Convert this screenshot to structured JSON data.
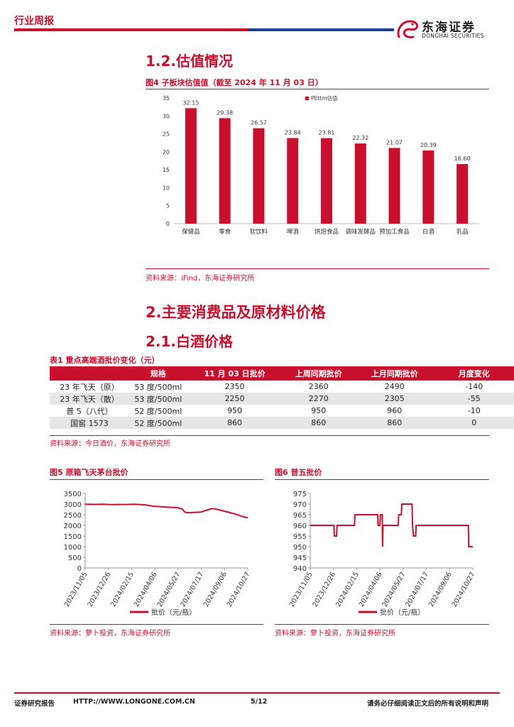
{
  "header": {
    "section_label": "行业周报",
    "logo_cn": "东海证券",
    "logo_en": "DONGHAI SECURITIES"
  },
  "sec_1_2": {
    "title": "1.2.估值情况",
    "figure_title": "图4  子板块估值值（截至 2024 年 11 月 03 日）",
    "source": "资料来源：iFind，东海证券研究所"
  },
  "sec_2": {
    "title": "2.主要消费品及原材料价格",
    "sub_title": "2.1.白酒价格"
  },
  "table1": {
    "title": "表1  重点高端酒批价变化（元）",
    "headers": [
      "",
      "规格",
      "11 月 03 日批价",
      "上周同期批价",
      "上月同期批价",
      "月度变化"
    ],
    "rows": [
      [
        "23 年飞天（原）",
        "53 度/500ml",
        "2350",
        "2360",
        "2490",
        "-140"
      ],
      [
        "23 年飞天（散）",
        "53 度/500ml",
        "2250",
        "2270",
        "2305",
        "-55"
      ],
      [
        "普 5（八代）",
        "52 度/500ml",
        "950",
        "950",
        "960",
        "-10"
      ],
      [
        "国窖 1573",
        "52 度/500ml",
        "860",
        "860",
        "860",
        "0"
      ]
    ],
    "source": "资料来源：今日酒价，东海证券研究所"
  },
  "figure5": {
    "title": "图5  原箱飞天茅台批价",
    "source": "资料来源：萝卜投资，东海证券研究所"
  },
  "figure6": {
    "title": "图6  普五批价",
    "source": "资料来源：萝卜投资，东海证券研究所"
  },
  "footer": {
    "left": "证券研究报告",
    "url": "HTTP://WWW.LONGONE.COM.CN",
    "page": "5/12",
    "right": "请务必仔细阅读正文后的所有说明和声明"
  },
  "colors": {
    "accent": "#c8102e",
    "navy": "#1f3f8f"
  },
  "chart_data": [
    {
      "type": "bar",
      "categories": [
        "保健品",
        "零食",
        "软饮料",
        "啤酒",
        "烘焙食品",
        "调味发酵品",
        "预加工食品",
        "白酒",
        "乳品"
      ],
      "series": [
        {
          "name": "PEttm估值",
          "values": [
            32.15,
            29.38,
            26.57,
            23.84,
            23.81,
            22.32,
            21.07,
            20.39,
            16.6
          ]
        }
      ],
      "value_labels": [
        "32.15",
        "29.38",
        "26.57",
        "23.84",
        "23.81",
        "22.32",
        "21.07",
        "20.39",
        "16.60"
      ],
      "ylim": [
        0,
        35
      ],
      "yticks": [
        "0",
        "5",
        "10",
        "15",
        "20",
        "25",
        "30",
        "35"
      ],
      "legend": "top-right",
      "grid": false
    },
    {
      "type": "line",
      "x_ticks": [
        "2023/11/05",
        "2023/12/26",
        "2024/02/15",
        "2024/04/06",
        "2024/05/27",
        "2024/07/17",
        "2024/09/06",
        "2024/10/27"
      ],
      "x_range": [
        "2023-11-05",
        "2024-11-03"
      ],
      "ylim": [
        0,
        3500
      ],
      "yticks": [
        "0",
        "500",
        "1000",
        "1500",
        "2000",
        "2500",
        "3000",
        "3500"
      ],
      "series": [
        {
          "name": "批价（元/瓶）",
          "points": [
            [
              "2023-11-05",
              2990
            ],
            [
              "2023-11-25",
              2985
            ],
            [
              "2023-12-15",
              2990
            ],
            [
              "2024-01-05",
              2975
            ],
            [
              "2024-01-20",
              2985
            ],
            [
              "2024-02-05",
              2980
            ],
            [
              "2024-02-20",
              2990
            ],
            [
              "2024-03-05",
              2980
            ],
            [
              "2024-03-20",
              2960
            ],
            [
              "2024-04-05",
              2900
            ],
            [
              "2024-04-20",
              2880
            ],
            [
              "2024-05-05",
              2860
            ],
            [
              "2024-05-20",
              2840
            ],
            [
              "2024-06-01",
              2820
            ],
            [
              "2024-06-10",
              2760
            ],
            [
              "2024-06-15",
              2620
            ],
            [
              "2024-06-25",
              2590
            ],
            [
              "2024-07-05",
              2610
            ],
            [
              "2024-07-20",
              2620
            ],
            [
              "2024-08-01",
              2700
            ],
            [
              "2024-08-15",
              2790
            ],
            [
              "2024-08-25",
              2760
            ],
            [
              "2024-09-05",
              2700
            ],
            [
              "2024-09-20",
              2620
            ],
            [
              "2024-10-05",
              2540
            ],
            [
              "2024-10-20",
              2430
            ],
            [
              "2024-11-03",
              2350
            ]
          ]
        }
      ],
      "legend": "bottom",
      "grid": false
    },
    {
      "type": "line",
      "x_ticks": [
        "2023/11/05",
        "2023/12/26",
        "2024/02/15",
        "2024/04/06",
        "2024/05/27",
        "2024/07/17",
        "2024/09/06",
        "2024/10/27"
      ],
      "x_range": [
        "2023-11-05",
        "2024-11-03"
      ],
      "ylim": [
        940,
        975
      ],
      "yticks": [
        "940",
        "945",
        "950",
        "955",
        "960",
        "965",
        "970",
        "975"
      ],
      "series": [
        {
          "name": "批价（元/瓶）",
          "points": [
            [
              "2023-11-05",
              960
            ],
            [
              "2023-12-28",
              960
            ],
            [
              "2023-12-29",
              955
            ],
            [
              "2024-01-03",
              955
            ],
            [
              "2024-01-04",
              960
            ],
            [
              "2024-02-12",
              960
            ],
            [
              "2024-02-13",
              965
            ],
            [
              "2024-04-04",
              965
            ],
            [
              "2024-04-05",
              960
            ],
            [
              "2024-04-09",
              960
            ],
            [
              "2024-04-10",
              965
            ],
            [
              "2024-04-14",
              965
            ],
            [
              "2024-04-15",
              950
            ],
            [
              "2024-04-16",
              960
            ],
            [
              "2024-05-20",
              960
            ],
            [
              "2024-05-21",
              965
            ],
            [
              "2024-05-27",
              965
            ],
            [
              "2024-05-28",
              970
            ],
            [
              "2024-06-20",
              970
            ],
            [
              "2024-06-21",
              960
            ],
            [
              "2024-06-23",
              955
            ],
            [
              "2024-06-28",
              955
            ],
            [
              "2024-06-29",
              960
            ],
            [
              "2024-10-24",
              960
            ],
            [
              "2024-10-25",
              950
            ],
            [
              "2024-11-03",
              950
            ]
          ]
        }
      ],
      "legend": "bottom",
      "grid": false
    }
  ]
}
